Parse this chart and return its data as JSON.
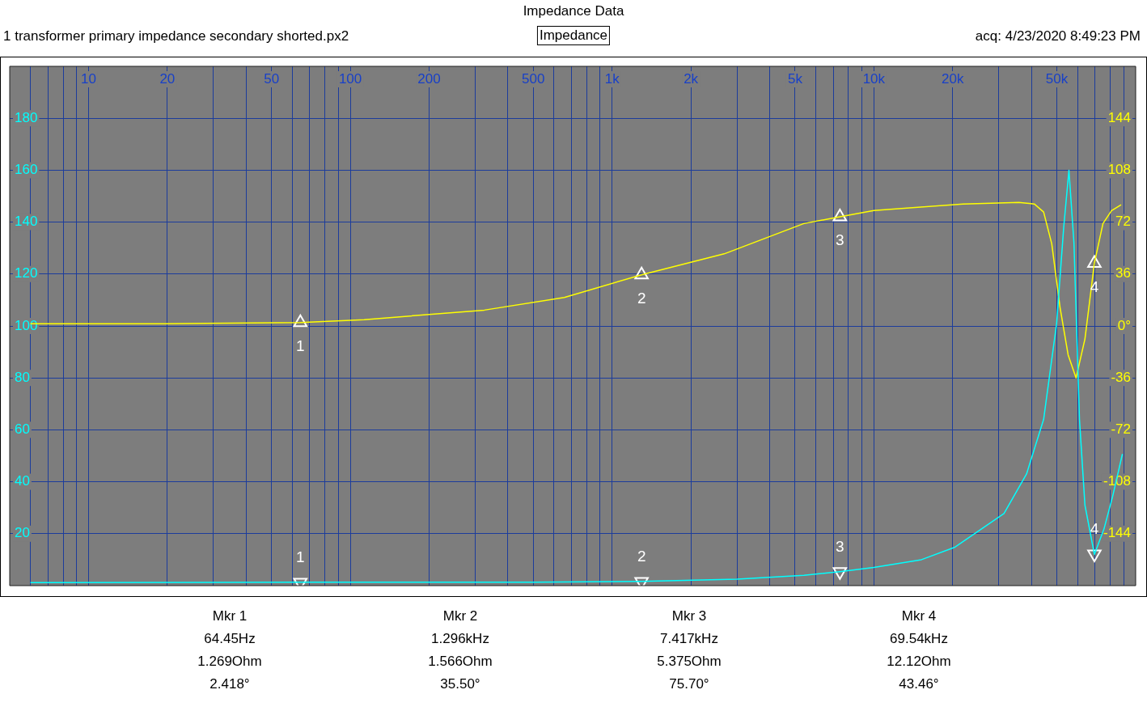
{
  "chart_data": {
    "type": "line",
    "title": "Impedance Data",
    "subtitle": "1 transformer primary impedance secondary shorted.px2",
    "annotations": [
      "Impedance",
      "acq: 4/23/2020 8:49:23 PM",
      "Mkr 1",
      "64.45Hz",
      "1.269Ohm",
      "2.418°",
      "Mkr 2",
      "1.296kHz",
      "1.566Ohm",
      "35.50°",
      "Mkr 3",
      "7.417kHz",
      "5.375Ohm",
      "75.70°",
      "Mkr 4",
      "69.54kHz",
      "12.12Ohm",
      "43.46°",
      "1",
      "2",
      "3",
      "4",
      "1",
      "2",
      "3",
      "4"
    ],
    "log": "x",
    "grid": true,
    "legend": false,
    "xlim": [
      5,
      100000
    ],
    "xticks": [
      {
        "value": 6,
        "label": null
      },
      {
        "value": 7,
        "label": null
      },
      {
        "value": 8,
        "label": null
      },
      {
        "value": 9,
        "label": null
      },
      10,
      20,
      {
        "value": 30,
        "label": null
      },
      {
        "value": 40,
        "label": null
      },
      50,
      {
        "value": 60,
        "label": null
      },
      {
        "value": 70,
        "label": null
      },
      {
        "value": 80,
        "label": null
      },
      {
        "value": 90,
        "label": null
      },
      100,
      200,
      {
        "value": 300,
        "label": null
      },
      {
        "value": 400,
        "label": null
      },
      500,
      {
        "value": 600,
        "label": null
      },
      {
        "value": 700,
        "label": null
      },
      {
        "value": 800,
        "label": null
      },
      {
        "value": 900,
        "label": null
      },
      {
        "value": 1000,
        "label": "1k"
      },
      {
        "value": 2000,
        "label": "2k"
      },
      {
        "value": 3000,
        "label": null
      },
      {
        "value": 4000,
        "label": null
      },
      {
        "value": 5000,
        "label": "5k"
      },
      {
        "value": 6000,
        "label": null
      },
      {
        "value": 7000,
        "label": null
      },
      {
        "value": 8000,
        "label": null
      },
      {
        "value": 9000,
        "label": null
      },
      {
        "value": 10000,
        "label": "10k"
      },
      {
        "value": 20000,
        "label": "20k"
      },
      {
        "value": 30000,
        "label": null
      },
      {
        "value": 40000,
        "label": null
      },
      {
        "value": 50000,
        "label": "50k"
      },
      {
        "value": 60000,
        "label": null
      },
      {
        "value": 70000,
        "label": null
      },
      {
        "value": 80000,
        "label": null
      },
      {
        "value": 90000,
        "label": null
      }
    ],
    "ylim": [
      0,
      200
    ],
    "yticks": [
      20,
      40,
      60,
      80,
      100,
      120,
      140,
      160,
      180
    ],
    "y2lim": [
      -180,
      180
    ],
    "y2ticks": [
      -144,
      -108,
      -72,
      -36,
      {
        "value": 0,
        "label": "0°"
      },
      36,
      72,
      108,
      144
    ],
    "series": [
      {
        "color": "#00ffff",
        "axis": "y",
        "x": [
          6,
          64.45,
          500,
          1296,
          3000,
          5400,
          7417,
          10000,
          15200,
          20300,
          31400,
          38300,
          44500,
          49900,
          53100,
          55600,
          58100,
          61000,
          64000,
          69540,
          75600,
          81500,
          89000
        ],
        "values": [
          1.2,
          1.3,
          1.3,
          1.6,
          2.5,
          4.0,
          5.4,
          7.0,
          10,
          14.7,
          27.8,
          43,
          64,
          101,
          138,
          160,
          132,
          64,
          31,
          12,
          21.7,
          34,
          50.7
        ]
      },
      {
        "color": "#ffff00",
        "axis": "y2",
        "x": [
          6,
          19.6,
          64.45,
          113,
          325,
          657,
          1296,
          2680,
          5400,
          7417,
          10000,
          21900,
          35800,
          41000,
          44500,
          47800,
          51400,
          55200,
          59200,
          64000,
          69540,
          75000,
          80900,
          88000
        ],
        "values": [
          1.6,
          1.6,
          2.4,
          4.4,
          11,
          19.8,
          35.5,
          50,
          71,
          75.7,
          80,
          84.6,
          85.7,
          84.6,
          79,
          57,
          13,
          -20,
          -36,
          -9,
          43.5,
          71,
          80,
          84
        ]
      },
      {
        "type": "scatter",
        "color": "#ffffff",
        "axis": "y",
        "marker": "triangle",
        "x": [
          64.45,
          1296,
          7417,
          69540
        ],
        "values": [
          1.269,
          1.566,
          5.375,
          12.12
        ]
      },
      {
        "type": "scatter",
        "color": "#ffffff",
        "axis": "y2",
        "marker": "triangle",
        "x": [
          64.45,
          1296,
          7417,
          69540
        ],
        "values": [
          2.418,
          35.5,
          75.7,
          43.46
        ]
      }
    ]
  }
}
